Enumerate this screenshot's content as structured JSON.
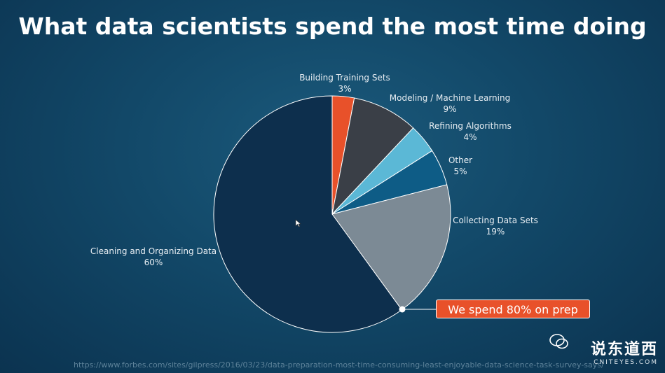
{
  "title": "What data scientists spend the most time doing",
  "chart_data": {
    "type": "pie",
    "title": "What data scientists spend the most time doing",
    "slices": [
      {
        "label": "Building Training Sets",
        "pct_text": "3%",
        "value": 3,
        "color": "#e8512a"
      },
      {
        "label": "Modeling / Machine Learning",
        "pct_text": "9%",
        "value": 9,
        "color": "#3a3f47"
      },
      {
        "label": "Refining Algorithms",
        "pct_text": "4%",
        "value": 4,
        "color": "#5bb8d6"
      },
      {
        "label": "Other",
        "pct_text": "5%",
        "value": 5,
        "color": "#0e5c86"
      },
      {
        "label": "Collecting Data Sets",
        "pct_text": "19%",
        "value": 19,
        "color": "#7c8a95"
      },
      {
        "label": "Cleaning and Organizing Data",
        "pct_text": "60%",
        "value": 60,
        "color": "#0d2f4d"
      }
    ],
    "legend": "none",
    "start": "top, clockwise"
  },
  "callout": "We spend 80% on prep",
  "source": "https://www.forbes.com/sites/gilpress/2016/03/23/data-preparation-most-time-consuming-least-enjoyable-data-science-task-survey-says/",
  "watermark": {
    "main": "说东道西",
    "sub": "CNITEYES.COM",
    "icon": "wechat-icon"
  }
}
